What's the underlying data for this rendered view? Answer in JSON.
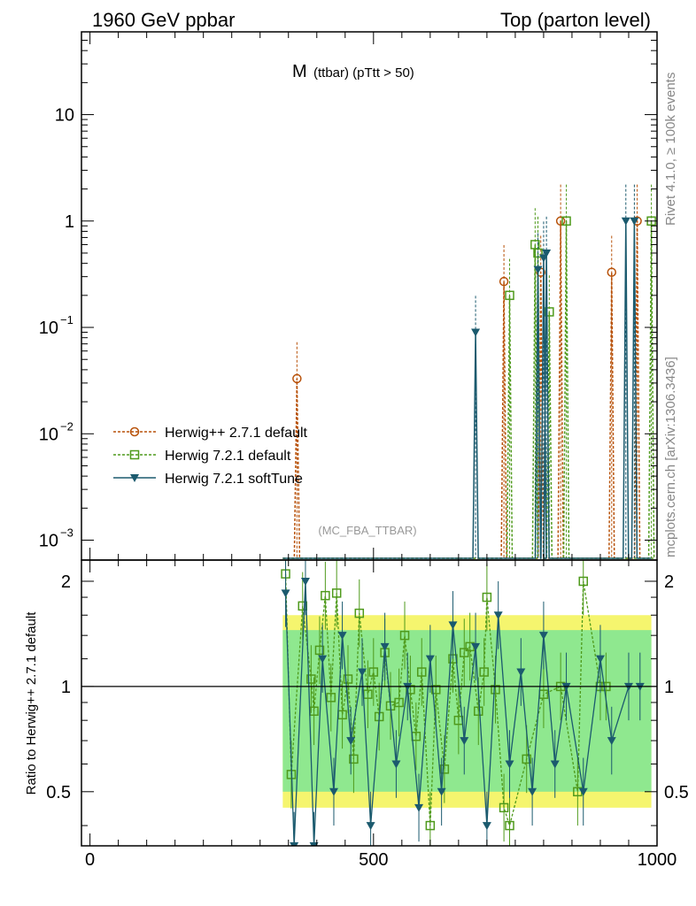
{
  "header": {
    "left": "1960 GeV ppbar",
    "right": "Top (parton level)"
  },
  "side": {
    "rivet": "Rivet 4.1.0, ≥ 100k events",
    "mcplots": "mcplots.cern.ch [arXiv:1306.3436]"
  },
  "chart_data": {
    "type": "line",
    "title": "M (ttbar) (pTtt > 50)",
    "title_main": "M",
    "title_sub": "(ttbar) (pTtt > 50)",
    "analysis_label": "(MC_FBA_TTBAR)",
    "xlabel": "",
    "ylabel_ratio": "Ratio to Herwig++ 2.7.1 default",
    "xlim": [
      -15,
      1000
    ],
    "ylim": [
      0.00065,
      60
    ],
    "ratio_ylim": [
      0.35,
      2.3
    ],
    "x_ticks": [
      0,
      500,
      1000
    ],
    "x_tick_labels": [
      "0",
      "500",
      "1000"
    ],
    "y_ticks": [
      0.001,
      0.01,
      0.1,
      1,
      10
    ],
    "y_tick_labels": [
      {
        "base": "10",
        "exp": "−3"
      },
      {
        "base": "10",
        "exp": "−2"
      },
      {
        "base": "10",
        "exp": "−1"
      },
      {
        "base": "1",
        "exp": ""
      },
      {
        "base": "10",
        "exp": ""
      }
    ],
    "ratio_ticks": [
      0.5,
      1,
      2
    ],
    "ratio_tick_labels": [
      "0.5",
      "1",
      "2"
    ],
    "series": [
      {
        "name": "Herwig++ 2.7.1 default",
        "color": "#b8520a",
        "marker": "circle",
        "points": [
          [
            365,
            0.033
          ],
          [
            730,
            0.27
          ],
          [
            795,
            0.33
          ],
          [
            830,
            1.0
          ],
          [
            920,
            0.33
          ],
          [
            965,
            1.0
          ]
        ]
      },
      {
        "name": "Herwig 7.2.1 default",
        "color": "#4f9a1c",
        "marker": "square",
        "points": [
          [
            740,
            0.2
          ],
          [
            785,
            0.6
          ],
          [
            790,
            0.5
          ],
          [
            810,
            0.14
          ],
          [
            840,
            1.0
          ],
          [
            990,
            1.0
          ]
        ]
      },
      {
        "name": "Herwig 7.2.1 softTune",
        "color": "#1b5a6e",
        "marker": "triangle-down",
        "points": [
          [
            680,
            0.09
          ],
          [
            790,
            0.35
          ],
          [
            800,
            0.45
          ],
          [
            805,
            0.5
          ],
          [
            945,
            1.0
          ],
          [
            960,
            1.0
          ]
        ]
      }
    ],
    "ratio_series": [
      {
        "name": "Herwig 7.2.1 default",
        "points": [
          [
            345,
            2.1
          ],
          [
            355,
            0.56
          ],
          [
            375,
            1.7
          ],
          [
            390,
            1.05
          ],
          [
            395,
            0.85
          ],
          [
            405,
            1.27
          ],
          [
            415,
            1.82
          ],
          [
            425,
            0.93
          ],
          [
            435,
            1.85
          ],
          [
            445,
            0.83
          ],
          [
            455,
            1.05
          ],
          [
            465,
            0.62
          ],
          [
            475,
            1.62
          ],
          [
            490,
            0.95
          ],
          [
            500,
            1.1
          ],
          [
            510,
            0.82
          ],
          [
            520,
            1.25
          ],
          [
            530,
            0.88
          ],
          [
            545,
            0.9
          ],
          [
            555,
            1.4
          ],
          [
            565,
            0.98
          ],
          [
            575,
            0.72
          ],
          [
            585,
            1.1
          ],
          [
            600,
            0.4
          ],
          [
            610,
            0.98
          ],
          [
            625,
            0.58
          ],
          [
            640,
            1.2
          ],
          [
            650,
            0.8
          ],
          [
            660,
            1.25
          ],
          [
            670,
            1.3
          ],
          [
            685,
            0.85
          ],
          [
            695,
            1.1
          ],
          [
            700,
            1.8
          ],
          [
            715,
            0.98
          ],
          [
            730,
            0.45
          ],
          [
            740,
            0.4
          ],
          [
            770,
            0.62
          ],
          [
            800,
            0.95
          ],
          [
            830,
            1.0
          ],
          [
            860,
            0.5
          ],
          [
            870,
            2.0
          ],
          [
            900,
            1.0
          ],
          [
            910,
            1.0
          ]
        ]
      },
      {
        "name": "Herwig 7.2.1 softTune",
        "points": [
          [
            345,
            1.85
          ],
          [
            360,
            0.35
          ],
          [
            380,
            2.0
          ],
          [
            395,
            0.35
          ],
          [
            410,
            1.2
          ],
          [
            430,
            0.5
          ],
          [
            445,
            1.4
          ],
          [
            460,
            0.7
          ],
          [
            480,
            1.1
          ],
          [
            495,
            0.4
          ],
          [
            520,
            1.3
          ],
          [
            540,
            0.6
          ],
          [
            560,
            1.0
          ],
          [
            580,
            0.45
          ],
          [
            600,
            1.2
          ],
          [
            620,
            0.5
          ],
          [
            640,
            1.5
          ],
          [
            660,
            0.7
          ],
          [
            680,
            1.3
          ],
          [
            700,
            0.4
          ],
          [
            720,
            1.6
          ],
          [
            740,
            0.6
          ],
          [
            760,
            1.1
          ],
          [
            780,
            0.5
          ],
          [
            800,
            1.4
          ],
          [
            820,
            0.6
          ],
          [
            840,
            1.0
          ],
          [
            870,
            0.5
          ],
          [
            900,
            1.2
          ],
          [
            920,
            0.7
          ],
          [
            950,
            1.0
          ],
          [
            970,
            1.0
          ]
        ]
      }
    ],
    "ratio_band": {
      "x_start": 340,
      "x_end": 990,
      "yellow": [
        1.6,
        0.45
      ],
      "green": [
        1.45,
        0.5
      ]
    }
  }
}
